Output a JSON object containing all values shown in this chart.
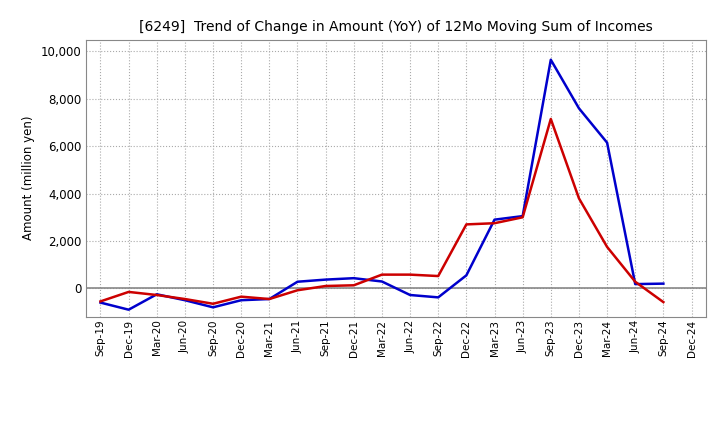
{
  "title": "[6249]  Trend of Change in Amount (YoY) of 12Mo Moving Sum of Incomes",
  "ylabel": "Amount (million yen)",
  "background_color": "#ffffff",
  "grid_color": "#aaaaaa",
  "zero_line_color": "#888888",
  "x_labels": [
    "Sep-19",
    "Dec-19",
    "Mar-20",
    "Jun-20",
    "Sep-20",
    "Dec-20",
    "Mar-21",
    "Jun-21",
    "Sep-21",
    "Dec-21",
    "Mar-22",
    "Jun-22",
    "Sep-22",
    "Dec-22",
    "Mar-23",
    "Jun-23",
    "Sep-23",
    "Dec-23",
    "Mar-24",
    "Jun-24",
    "Sep-24",
    "Dec-24"
  ],
  "ordinary_income": [
    -600,
    -900,
    -250,
    -500,
    -800,
    -500,
    -450,
    280,
    370,
    430,
    290,
    -280,
    -380,
    550,
    2900,
    3050,
    9650,
    7600,
    6150,
    180,
    200,
    null
  ],
  "net_income": [
    -550,
    -150,
    -280,
    -450,
    -650,
    -350,
    -450,
    -80,
    100,
    130,
    580,
    580,
    520,
    2700,
    2750,
    3000,
    7150,
    3800,
    1750,
    280,
    -580,
    null
  ],
  "ordinary_income_color": "#0000cc",
  "net_income_color": "#cc0000",
  "ylim": [
    -1200,
    10500
  ],
  "yticks": [
    0,
    2000,
    4000,
    6000,
    8000,
    10000
  ],
  "line_width": 1.8
}
